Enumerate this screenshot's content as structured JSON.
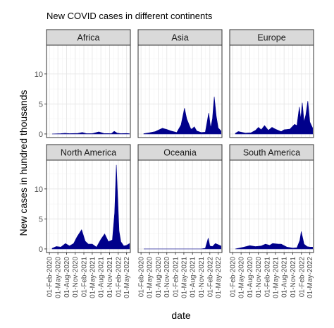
{
  "chart_data": {
    "type": "area",
    "title": "New COVID cases in different continents",
    "xlabel": "date",
    "ylabel": "New cases in hundred thousands",
    "ylim": [
      -0.6,
      14.8
    ],
    "y_ticks": [
      0,
      5,
      10
    ],
    "xlim": [
      "2020-01-01",
      "2022-06-10"
    ],
    "x_ticks": [
      "2020-02-01",
      "2020-05-01",
      "2020-08-01",
      "2020-11-01",
      "2021-02-01",
      "2021-05-01",
      "2021-08-01",
      "2021-11-01",
      "2022-02-01",
      "2022-05-01"
    ],
    "x_tick_labels": [
      "01-Feb-2020",
      "01-May-2020",
      "01-Aug-2020",
      "01-Nov-2020",
      "01-Feb-2021",
      "01-May-2021",
      "01-Aug-2021",
      "01-Nov-2021",
      "01-Feb-2022",
      "01-May-2022"
    ],
    "grid": true,
    "fill_color": "#00008b",
    "facets": [
      {
        "name": "Africa",
        "x": [
          "2020-03-01",
          "2020-06-01",
          "2020-07-15",
          "2020-09-01",
          "2020-12-01",
          "2021-01-15",
          "2021-03-01",
          "2021-05-01",
          "2021-07-10",
          "2021-09-01",
          "2021-11-20",
          "2021-12-20",
          "2022-01-20",
          "2022-03-01",
          "2022-05-01",
          "2022-05-31"
        ],
        "y": [
          0.0,
          0.05,
          0.12,
          0.05,
          0.1,
          0.25,
          0.05,
          0.06,
          0.35,
          0.08,
          0.05,
          0.45,
          0.15,
          0.05,
          0.08,
          0.05
        ]
      },
      {
        "name": "Asia",
        "x": [
          "2020-03-01",
          "2020-05-01",
          "2020-07-01",
          "2020-09-15",
          "2020-11-01",
          "2020-12-15",
          "2021-02-15",
          "2021-04-01",
          "2021-05-08",
          "2021-06-01",
          "2021-07-15",
          "2021-08-01",
          "2021-08-20",
          "2021-09-15",
          "2021-11-01",
          "2021-12-15",
          "2022-01-20",
          "2022-02-10",
          "2022-03-01",
          "2022-03-20",
          "2022-04-10",
          "2022-05-01",
          "2022-05-31"
        ],
        "y": [
          0.05,
          0.2,
          0.4,
          0.95,
          0.75,
          0.5,
          0.25,
          1.5,
          4.3,
          2.5,
          0.8,
          0.9,
          1.2,
          0.5,
          0.25,
          0.3,
          3.5,
          1.0,
          2.5,
          6.2,
          3.0,
          1.0,
          0.5
        ]
      },
      {
        "name": "Europe",
        "x": [
          "2020-03-01",
          "2020-04-01",
          "2020-06-15",
          "2020-08-15",
          "2020-10-01",
          "2020-11-01",
          "2020-12-01",
          "2021-01-05",
          "2021-02-15",
          "2021-03-25",
          "2021-05-01",
          "2021-07-01",
          "2021-08-01",
          "2021-10-01",
          "2021-11-20",
          "2021-12-15",
          "2022-01-10",
          "2022-01-25",
          "2022-02-10",
          "2022-03-01",
          "2022-03-20",
          "2022-04-10",
          "2022-05-01",
          "2022-05-31"
        ],
        "y": [
          0.1,
          0.4,
          0.15,
          0.2,
          0.6,
          1.1,
          0.7,
          1.4,
          0.6,
          1.1,
          0.8,
          0.4,
          0.7,
          0.8,
          1.6,
          1.4,
          4.5,
          2.5,
          5.2,
          2.0,
          3.2,
          5.5,
          2.0,
          1.0
        ]
      },
      {
        "name": "North America",
        "x": [
          "2020-03-01",
          "2020-04-15",
          "2020-06-01",
          "2020-07-20",
          "2020-09-01",
          "2020-10-15",
          "2020-11-20",
          "2021-01-08",
          "2021-02-15",
          "2021-03-20",
          "2021-05-01",
          "2021-06-15",
          "2021-08-01",
          "2021-09-10",
          "2021-10-20",
          "2021-12-01",
          "2021-12-25",
          "2022-01-12",
          "2022-01-25",
          "2022-02-10",
          "2022-03-01",
          "2022-04-01",
          "2022-05-01",
          "2022-05-31"
        ],
        "y": [
          0.1,
          0.4,
          0.3,
          0.9,
          0.5,
          0.9,
          2.0,
          3.2,
          1.3,
          0.8,
          0.8,
          0.3,
          1.6,
          2.5,
          1.2,
          1.5,
          6.0,
          14.0,
          9.0,
          3.0,
          1.2,
          0.5,
          0.6,
          0.9
        ]
      },
      {
        "name": "Oceania",
        "x": [
          "2020-03-01",
          "2021-11-01",
          "2021-12-15",
          "2022-01-15",
          "2022-02-01",
          "2022-03-01",
          "2022-04-01",
          "2022-05-01",
          "2022-05-31"
        ],
        "y": [
          0.0,
          0.0,
          0.1,
          1.8,
          0.5,
          0.4,
          0.9,
          0.7,
          0.5
        ]
      },
      {
        "name": "South America",
        "x": [
          "2020-03-01",
          "2020-06-01",
          "2020-08-01",
          "2020-10-01",
          "2020-12-01",
          "2021-01-15",
          "2021-03-01",
          "2021-04-01",
          "2021-06-01",
          "2021-07-01",
          "2021-09-01",
          "2021-11-01",
          "2021-12-15",
          "2022-01-15",
          "2022-01-30",
          "2022-03-01",
          "2022-04-01",
          "2022-05-01",
          "2022-05-31"
        ],
        "y": [
          0.0,
          0.3,
          0.55,
          0.4,
          0.5,
          0.8,
          0.6,
          0.9,
          0.8,
          0.8,
          0.3,
          0.15,
          0.2,
          1.4,
          2.9,
          0.8,
          0.4,
          0.3,
          0.3
        ]
      }
    ]
  }
}
